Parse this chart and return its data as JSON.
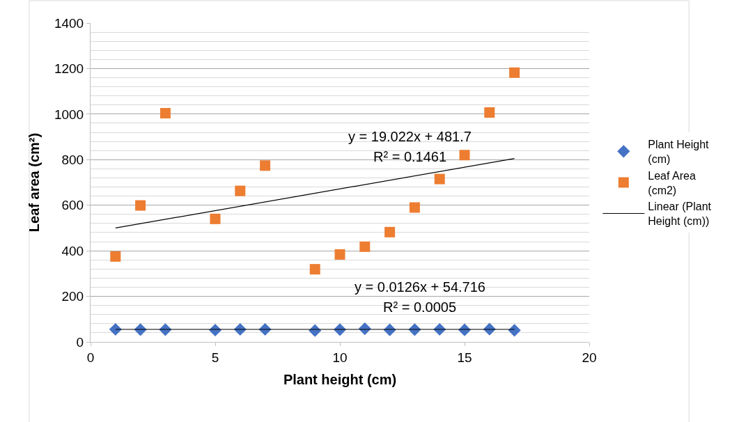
{
  "chart_data": {
    "type": "scatter",
    "xlabel": "Plant height (cm)",
    "ylabel": "Leaf area (cm²)",
    "xlim": [
      0,
      20
    ],
    "xticks": [
      0,
      5,
      10,
      15,
      20
    ],
    "ylim": [
      0,
      1400
    ],
    "yticks": [
      0,
      200,
      400,
      600,
      800,
      1000,
      1200,
      1400
    ],
    "grid": "y",
    "legend": "right",
    "series": [
      {
        "name": "Plant Height (cm)",
        "color": "#4472c4",
        "marker": "diamond",
        "x": [
          1,
          2,
          3,
          5,
          6,
          7,
          9,
          10,
          11,
          12,
          13,
          14,
          15,
          16,
          17
        ],
        "values": [
          55,
          54,
          54,
          52,
          55,
          55,
          50,
          54,
          58,
          53,
          54,
          55,
          53,
          56,
          51
        ]
      },
      {
        "name": "Leaf Area (cm2)",
        "color": "#ed7d31",
        "marker": "square",
        "x": [
          1,
          2,
          3,
          5,
          6,
          7,
          9,
          10,
          11,
          12,
          13,
          14,
          15,
          16,
          17
        ],
        "values": [
          375,
          599,
          1004,
          540,
          663,
          774,
          319,
          384,
          418,
          482,
          590,
          715,
          820,
          1007,
          1182
        ]
      },
      {
        "name": "Linear (Plant Height (cm))",
        "type": "line",
        "color": "#000000",
        "x": [
          1,
          17
        ],
        "values": [
          55,
          55
        ]
      },
      {
        "type": "line",
        "color": "#000000",
        "x": [
          1,
          17
        ],
        "values": [
          500,
          805
        ]
      }
    ],
    "annotations": [
      "y = 19.022x + 481.7",
      "R² = 0.1461",
      "y = 0.0126x + 54.716",
      "R² = 0.0005"
    ]
  }
}
